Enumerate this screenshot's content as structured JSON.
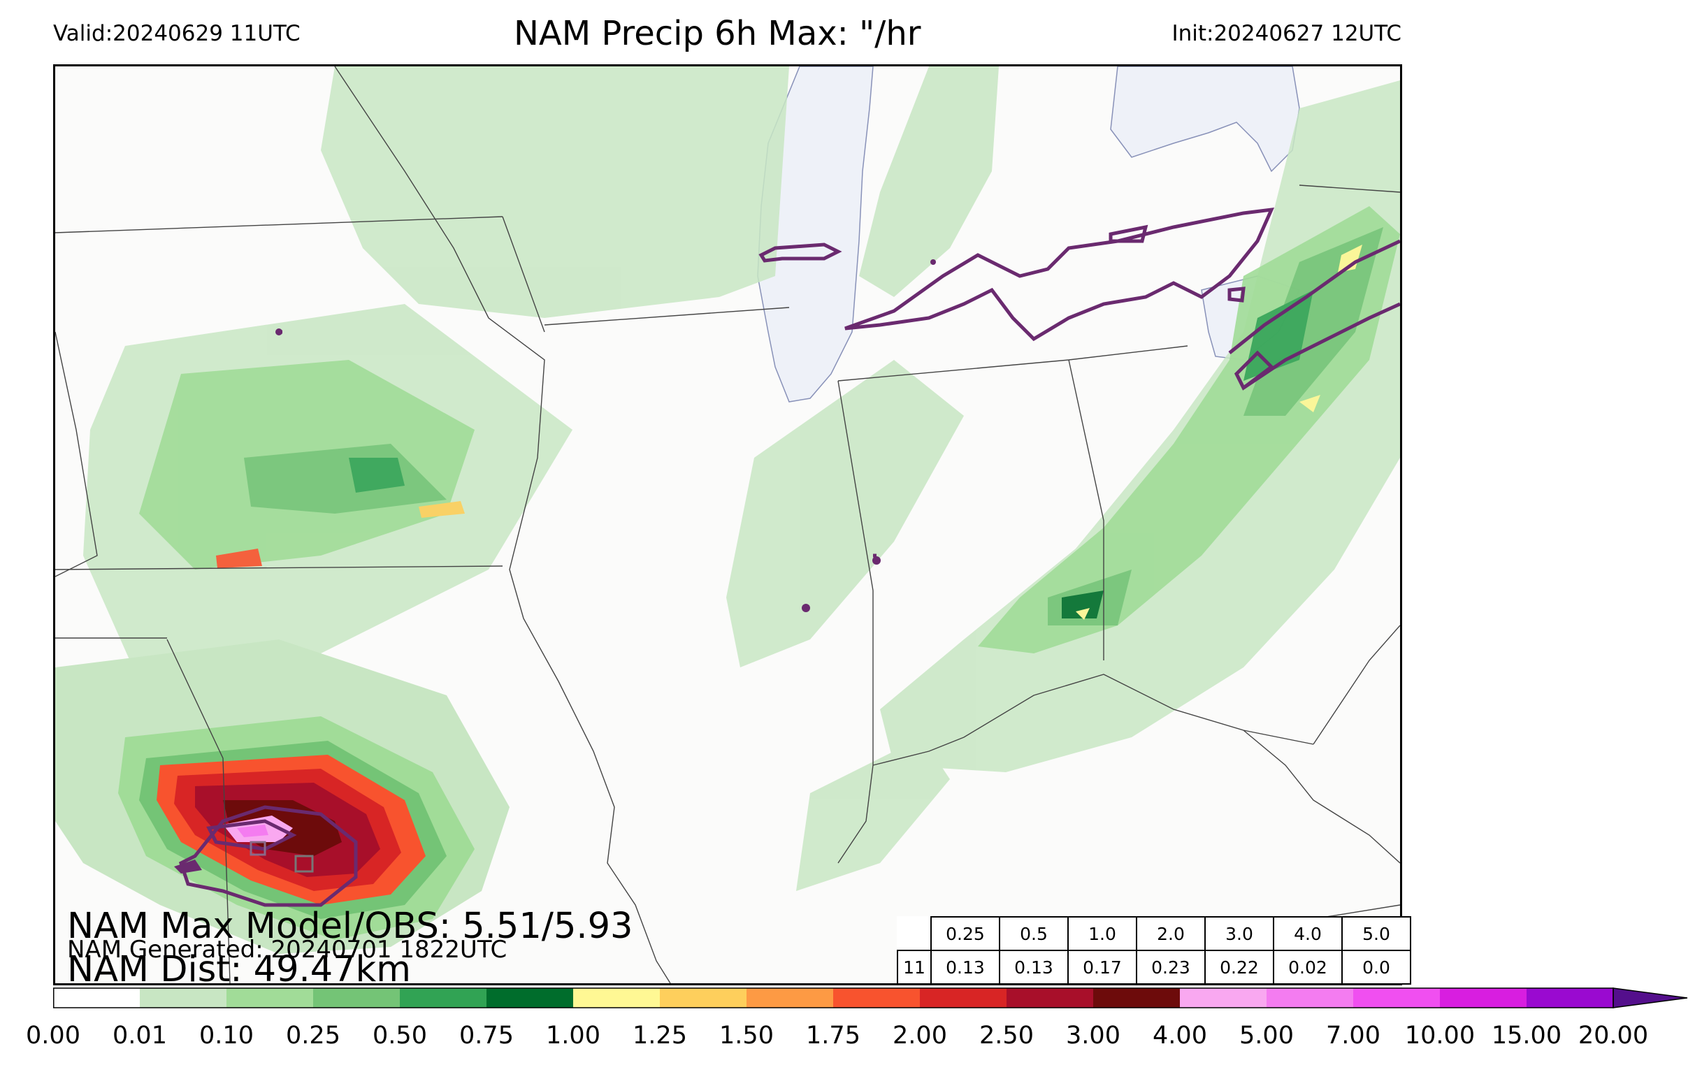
{
  "header": {
    "valid": "Valid:20240629 11UTC",
    "title": "NAM Precip 6h Max: \"/hr",
    "init": "Init:20240627 12UTC"
  },
  "map": {
    "background_color": "#fbfbfa",
    "lake_color": "#eef1f8",
    "border_color": "#444444",
    "contour_color": "#6a2a6f",
    "stats": {
      "max_model_obs": "NAM Max Model/OBS: 5.51/5.93",
      "generated": "NAM Generated: 20240701 1822UTC",
      "distance": "NAM Dist: 49.47km"
    }
  },
  "threshold_table": {
    "thresholds": [
      "0.25",
      "0.5",
      "1.0",
      "2.0",
      "3.0",
      "4.0",
      "5.0"
    ],
    "row_label": "11",
    "values": [
      "0.13",
      "0.13",
      "0.17",
      "0.23",
      "0.22",
      "0.02",
      "0.0"
    ]
  },
  "colorbar": {
    "ticks": [
      "0.00",
      "0.01",
      "0.10",
      "0.25",
      "0.50",
      "0.75",
      "1.00",
      "1.25",
      "1.50",
      "1.75",
      "2.00",
      "2.50",
      "3.00",
      "4.00",
      "5.00",
      "7.00",
      "10.00",
      "15.00",
      "20.00"
    ],
    "colors": [
      "#ffffff",
      "#c8e6c3",
      "#a1dc98",
      "#74c476",
      "#31a354",
      "#006d2c",
      "#fff894",
      "#fecf5c",
      "#fd9a44",
      "#f8532e",
      "#d82525",
      "#a80f2a",
      "#6d0b0b",
      "#f9a8f0",
      "#f47cf0",
      "#f04ff0",
      "#d81ee0",
      "#9a0ad0",
      "#540f8c"
    ]
  }
}
